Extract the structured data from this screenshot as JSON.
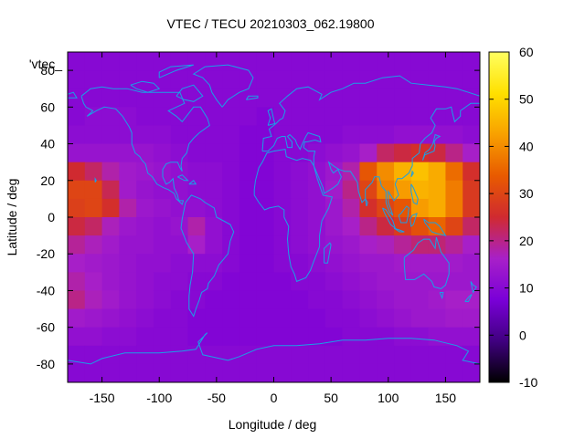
{
  "chart_data": {
    "type": "heatmap",
    "title": "VTEC / TECU 20210303_062.19800",
    "xlabel": "Longitude / deg",
    "ylabel": "Latitude / deg",
    "series_key_label": "'vtec_",
    "xlim": [
      -180,
      180
    ],
    "ylim": [
      -90,
      90
    ],
    "x_ticks": [
      -150,
      -100,
      -50,
      0,
      50,
      100,
      150
    ],
    "y_ticks": [
      -80,
      -60,
      -40,
      -20,
      0,
      20,
      40,
      60,
      80
    ],
    "colorbar": {
      "range": [
        -10,
        60
      ],
      "ticks": [
        -10,
        0,
        10,
        20,
        30,
        40,
        50,
        60
      ],
      "palette": [
        "#000000",
        "#400080",
        "#7a00d8",
        "#a820c8",
        "#d02a30",
        "#e85a00",
        "#f8a000",
        "#ffe000",
        "#ffff60"
      ]
    },
    "grid": {
      "lon_step": 15,
      "lat_step": 10,
      "lat_bands_north_to_south": [
        85,
        75,
        65,
        55,
        45,
        35,
        25,
        15,
        5,
        -5,
        -15,
        -25,
        -35,
        -45,
        -55,
        -65,
        -75,
        -85
      ],
      "lon_centers": [
        -172.5,
        -157.5,
        -142.5,
        -127.5,
        -112.5,
        -97.5,
        -82.5,
        -67.5,
        -52.5,
        -37.5,
        -22.5,
        -7.5,
        7.5,
        22.5,
        37.5,
        52.5,
        67.5,
        82.5,
        97.5,
        112.5,
        127.5,
        142.5,
        157.5,
        172.5
      ],
      "values": [
        [
          10,
          10,
          10,
          10,
          10,
          10,
          10,
          10,
          10,
          10,
          10,
          10,
          10,
          10,
          10,
          10,
          10,
          10,
          10,
          10,
          10,
          10,
          10,
          10
        ],
        [
          10,
          10,
          10,
          10,
          10,
          10,
          10,
          10,
          10,
          10,
          10,
          10,
          10,
          10,
          10,
          10,
          10,
          10,
          10,
          10,
          10,
          10,
          10,
          10
        ],
        [
          10,
          10,
          10,
          10,
          10,
          10,
          10,
          10,
          10,
          10,
          10,
          10,
          10,
          10,
          10,
          10,
          10,
          10,
          10,
          10,
          10,
          10,
          10,
          10
        ],
        [
          10,
          11,
          11,
          11,
          10,
          10,
          10,
          10,
          10,
          10,
          10,
          9,
          10,
          10,
          10,
          10,
          10,
          10,
          10,
          10,
          10,
          10,
          10,
          10
        ],
        [
          11,
          11,
          11,
          11,
          11,
          11,
          10,
          10,
          10,
          10,
          9,
          9,
          10,
          10,
          10,
          10,
          11,
          11,
          11,
          12,
          12,
          12,
          12,
          11
        ],
        [
          13,
          13,
          13,
          13,
          13,
          12,
          11,
          10,
          10,
          10,
          9,
          9,
          10,
          10,
          11,
          12,
          13,
          16,
          22,
          24,
          26,
          24,
          20,
          16
        ],
        [
          25,
          22,
          18,
          15,
          14,
          13,
          12,
          11,
          11,
          10,
          9,
          9,
          10,
          11,
          12,
          14,
          18,
          33,
          40,
          45,
          47,
          44,
          36,
          26
        ],
        [
          30,
          30,
          23,
          15,
          13,
          12,
          12,
          11,
          11,
          10,
          9,
          9,
          10,
          11,
          12,
          15,
          20,
          30,
          38,
          42,
          45,
          44,
          38,
          28
        ],
        [
          29,
          30,
          26,
          18,
          14,
          13,
          12,
          12,
          11,
          10,
          9,
          9,
          10,
          11,
          12,
          14,
          18,
          26,
          30,
          33,
          42,
          44,
          38,
          28
        ],
        [
          24,
          22,
          17,
          14,
          13,
          12,
          13,
          18,
          12,
          10,
          9,
          9,
          10,
          11,
          12,
          14,
          16,
          20,
          24,
          28,
          32,
          35,
          30,
          22
        ],
        [
          19,
          17,
          15,
          13,
          13,
          12,
          12,
          16,
          12,
          10,
          9,
          9,
          10,
          11,
          12,
          13,
          14,
          16,
          17,
          19,
          21,
          21,
          19,
          16
        ],
        [
          16,
          15,
          14,
          13,
          12,
          12,
          11,
          11,
          11,
          10,
          9,
          9,
          10,
          10,
          11,
          12,
          13,
          14,
          14,
          15,
          15,
          15,
          15,
          14
        ],
        [
          18,
          16,
          14,
          13,
          12,
          11,
          11,
          10,
          10,
          9,
          9,
          9,
          9,
          10,
          10,
          11,
          12,
          13,
          14,
          14,
          14,
          14,
          14,
          14
        ],
        [
          20,
          17,
          15,
          13,
          12,
          11,
          10,
          10,
          9,
          9,
          9,
          9,
          9,
          9,
          10,
          10,
          11,
          12,
          13,
          14,
          14,
          15,
          16,
          16
        ],
        [
          15,
          14,
          13,
          12,
          11,
          10,
          10,
          9,
          9,
          9,
          9,
          9,
          9,
          9,
          9,
          10,
          10,
          11,
          12,
          13,
          14,
          14,
          15,
          15
        ],
        [
          12,
          12,
          11,
          11,
          10,
          10,
          10,
          9,
          9,
          9,
          9,
          9,
          9,
          9,
          9,
          9,
          10,
          10,
          10,
          11,
          11,
          12,
          12,
          12
        ],
        [
          10,
          10,
          10,
          10,
          10,
          10,
          10,
          10,
          10,
          10,
          10,
          10,
          10,
          10,
          10,
          10,
          10,
          10,
          10,
          10,
          10,
          10,
          10,
          10
        ],
        [
          10,
          10,
          10,
          10,
          10,
          10,
          10,
          10,
          10,
          10,
          10,
          10,
          10,
          10,
          10,
          10,
          10,
          10,
          10,
          10,
          10,
          10,
          10,
          10
        ]
      ]
    }
  }
}
